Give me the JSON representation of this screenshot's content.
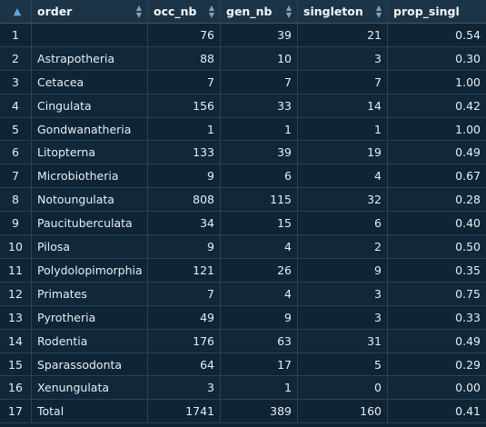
{
  "table": {
    "header": {
      "index_label": "",
      "columns": [
        "order",
        "occ_nb",
        "gen_nb",
        "singleton",
        "prop_singl"
      ]
    },
    "rows": [
      {
        "idx": "1",
        "order": "",
        "occ_nb": "76",
        "gen_nb": "39",
        "singleton": "21",
        "prop_singl": "0.54"
      },
      {
        "idx": "2",
        "order": "Astrapotheria",
        "occ_nb": "88",
        "gen_nb": "10",
        "singleton": "3",
        "prop_singl": "0.30"
      },
      {
        "idx": "3",
        "order": "Cetacea",
        "occ_nb": "7",
        "gen_nb": "7",
        "singleton": "7",
        "prop_singl": "1.00"
      },
      {
        "idx": "4",
        "order": "Cingulata",
        "occ_nb": "156",
        "gen_nb": "33",
        "singleton": "14",
        "prop_singl": "0.42"
      },
      {
        "idx": "5",
        "order": "Gondwanatheria",
        "occ_nb": "1",
        "gen_nb": "1",
        "singleton": "1",
        "prop_singl": "1.00"
      },
      {
        "idx": "6",
        "order": "Litopterna",
        "occ_nb": "133",
        "gen_nb": "39",
        "singleton": "19",
        "prop_singl": "0.49"
      },
      {
        "idx": "7",
        "order": "Microbiotheria",
        "occ_nb": "9",
        "gen_nb": "6",
        "singleton": "4",
        "prop_singl": "0.67"
      },
      {
        "idx": "8",
        "order": "Notoungulata",
        "occ_nb": "808",
        "gen_nb": "115",
        "singleton": "32",
        "prop_singl": "0.28"
      },
      {
        "idx": "9",
        "order": "Paucituberculata",
        "occ_nb": "34",
        "gen_nb": "15",
        "singleton": "6",
        "prop_singl": "0.40"
      },
      {
        "idx": "10",
        "order": "Pilosa",
        "occ_nb": "9",
        "gen_nb": "4",
        "singleton": "2",
        "prop_singl": "0.50"
      },
      {
        "idx": "11",
        "order": "Polydolopimorphia",
        "occ_nb": "121",
        "gen_nb": "26",
        "singleton": "9",
        "prop_singl": "0.35"
      },
      {
        "idx": "12",
        "order": "Primates",
        "occ_nb": "7",
        "gen_nb": "4",
        "singleton": "3",
        "prop_singl": "0.75"
      },
      {
        "idx": "13",
        "order": "Pyrotheria",
        "occ_nb": "49",
        "gen_nb": "9",
        "singleton": "3",
        "prop_singl": "0.33"
      },
      {
        "idx": "14",
        "order": "Rodentia",
        "occ_nb": "176",
        "gen_nb": "63",
        "singleton": "31",
        "prop_singl": "0.49"
      },
      {
        "idx": "15",
        "order": "Sparassodonta",
        "occ_nb": "64",
        "gen_nb": "17",
        "singleton": "5",
        "prop_singl": "0.29"
      },
      {
        "idx": "16",
        "order": "Xenungulata",
        "occ_nb": "3",
        "gen_nb": "1",
        "singleton": "0",
        "prop_singl": "0.00"
      },
      {
        "idx": "17",
        "order": "Total",
        "occ_nb": "1741",
        "gen_nb": "389",
        "singleton": "160",
        "prop_singl": "0.41"
      }
    ]
  },
  "icons": {
    "sort_active": "sort-up-icon",
    "sort_inactive": "sort-updown-icon"
  },
  "colors": {
    "background": "#0f2536",
    "header": "#1b3447",
    "accent": "#5aa8e6"
  }
}
